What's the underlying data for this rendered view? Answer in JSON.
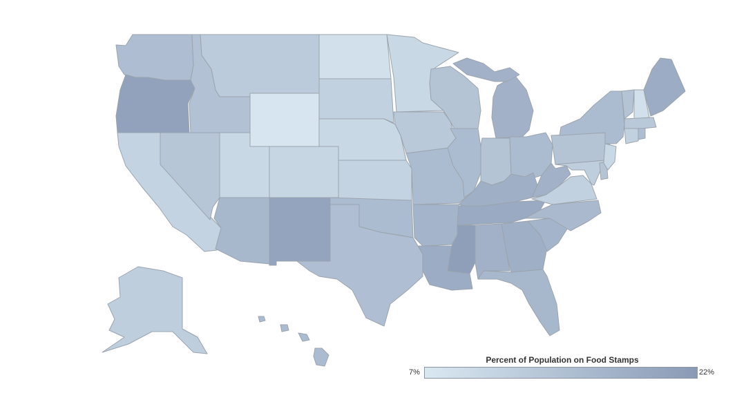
{
  "legend": {
    "title": "Percent of Population on Food Stamps",
    "min_label": "7%",
    "max_label": "22%",
    "min_value": 7,
    "max_value": 22,
    "color_low": "#d9e8f1",
    "color_high": "#8a9ab6"
  },
  "state_values": {
    "WA": 15.2,
    "OR": 20.5,
    "CA": 11.0,
    "NV": 13.5,
    "ID": 14.5,
    "MT": 12.5,
    "WY": 7.5,
    "UT": 10.0,
    "AZ": 16.5,
    "CO": 10.5,
    "NM": 20.0,
    "ND": 8.5,
    "SD": 11.5,
    "NE": 10.0,
    "KS": 11.0,
    "OK": 15.5,
    "TX": 15.0,
    "MN": 10.0,
    "IA": 13.0,
    "MO": 15.5,
    "AR": 17.0,
    "LA": 18.5,
    "WI": 14.0,
    "IL": 15.5,
    "MI": 17.5,
    "IN": 14.0,
    "OH": 15.5,
    "KY": 18.0,
    "TN": 19.0,
    "MS": 21.0,
    "AL": 17.5,
    "GA": 18.0,
    "FL": 16.5,
    "SC": 17.0,
    "NC": 16.0,
    "VA": 11.5,
    "WV": 17.5,
    "PA": 14.0,
    "NY": 15.5,
    "NJ": 10.0,
    "DE": 14.0,
    "MD": 12.0,
    "VT": 14.0,
    "NH": 8.5,
    "ME": 18.5,
    "MA": 13.0,
    "CT": 11.5,
    "RI": 15.0,
    "AK": 12.0,
    "HI": 15.5
  }
}
